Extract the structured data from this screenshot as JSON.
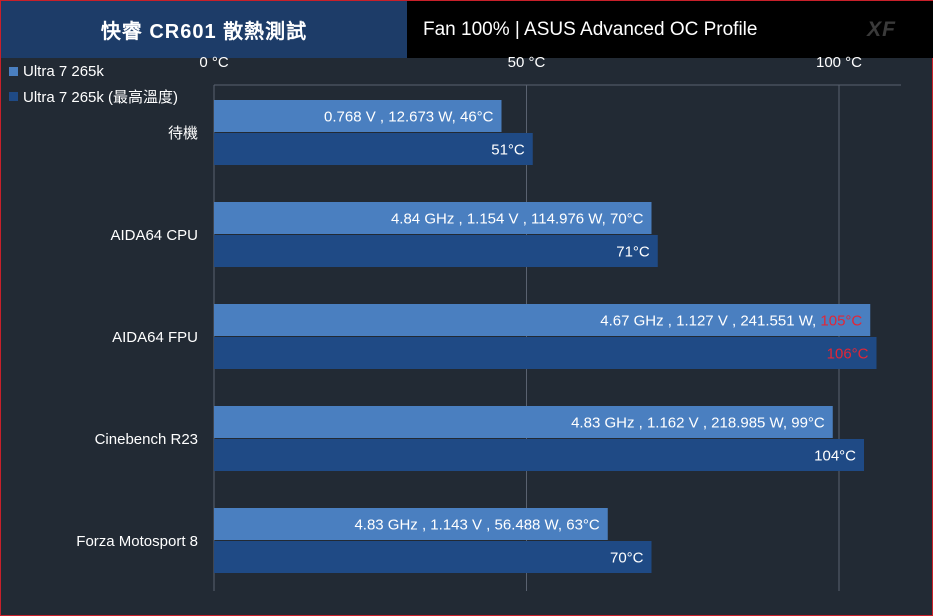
{
  "header": {
    "title": "快睿 CR601 散熱測試",
    "subtitle": "Fan 100% | ASUS Advanced OC Profile",
    "logo": "XF"
  },
  "colors": {
    "series1": "#4a7fc0",
    "series2": "#1f4a85",
    "highlight": "#e32636",
    "label": "#ffffff",
    "grid": "#5a6270"
  },
  "chart_data": {
    "type": "bar",
    "orientation": "horizontal",
    "categories": [
      "待機",
      "AIDA64 CPU",
      "AIDA64 FPU",
      "Cinebench R23",
      "Forza Motosport 8"
    ],
    "xlim": [
      0,
      100
    ],
    "xticks": [
      {
        "value": 0,
        "label": "0 °C"
      },
      {
        "value": 50,
        "label": "50 °C"
      },
      {
        "value": 100,
        "label": "100 °C"
      }
    ],
    "grid": true,
    "legend_position": "top-left",
    "series": [
      {
        "name": "Ultra 7 265k",
        "values": [
          46,
          70,
          105,
          99,
          63
        ],
        "labels": [
          {
            "text": "0.768 V , 12.673 W, ",
            "temp": "46°C",
            "hot": false
          },
          {
            "text": "4.84 GHz , 1.154 V , 114.976 W, ",
            "temp": "70°C",
            "hot": false
          },
          {
            "text": "4.67 GHz , 1.127 V , 241.551 W, ",
            "temp": "105°C",
            "hot": true
          },
          {
            "text": "4.83 GHz , 1.162 V , 218.985 W, ",
            "temp": "99°C",
            "hot": false
          },
          {
            "text": "4.83 GHz , 1.143 V , 56.488 W, ",
            "temp": "63°C",
            "hot": false
          }
        ]
      },
      {
        "name": "Ultra 7 265k (最高溫度)",
        "values": [
          51,
          71,
          106,
          104,
          70
        ],
        "labels": [
          {
            "text": "",
            "temp": "51°C",
            "hot": false
          },
          {
            "text": "",
            "temp": "71°C",
            "hot": false
          },
          {
            "text": "",
            "temp": "106°C",
            "hot": true
          },
          {
            "text": "",
            "temp": "104°C",
            "hot": false
          },
          {
            "text": "",
            "temp": "70°C",
            "hot": false
          }
        ]
      }
    ]
  }
}
